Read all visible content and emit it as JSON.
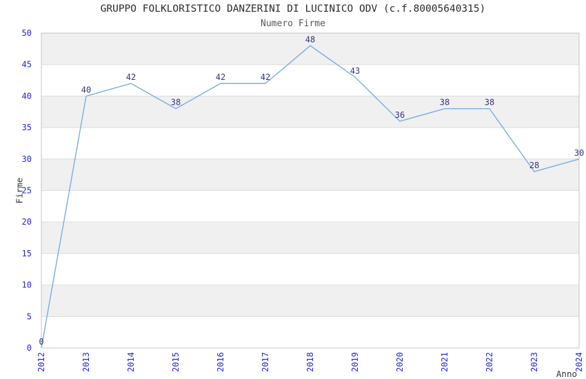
{
  "chart_data": {
    "type": "line",
    "title": "GRUPPO FOLKLORISTICO DANZERINI DI LUCINICO ODV (c.f.80005640315)",
    "subtitle": "Numero Firme",
    "xlabel": "Anno",
    "ylabel": "Firme",
    "x": [
      "2012",
      "2013",
      "2014",
      "2015",
      "2016",
      "2017",
      "2018",
      "2019",
      "2020",
      "2021",
      "2022",
      "2023",
      "2024"
    ],
    "values": [
      0,
      40,
      42,
      38,
      42,
      42,
      48,
      43,
      36,
      38,
      38,
      28,
      30
    ],
    "ylim": [
      0,
      50
    ],
    "ytick_step": 5,
    "yticks": [
      0,
      5,
      10,
      15,
      20,
      25,
      30,
      35,
      40,
      45,
      50
    ],
    "grid": "horizontal gridlines with alternating shaded bands",
    "legend_position": "none",
    "markers": "none, values labeled above points",
    "colors": {
      "line": "#79ade0",
      "tick_label": "#2424dd",
      "data_label": "#33337f",
      "band_fill": "#f0f0f0",
      "gridline": "#dcdcdc",
      "plot_border": "#c4c4c4",
      "title_text": "#2b2b2b",
      "subtitle_text": "#555555",
      "axis_label_text": "#333333",
      "background": "#ffffff"
    }
  }
}
